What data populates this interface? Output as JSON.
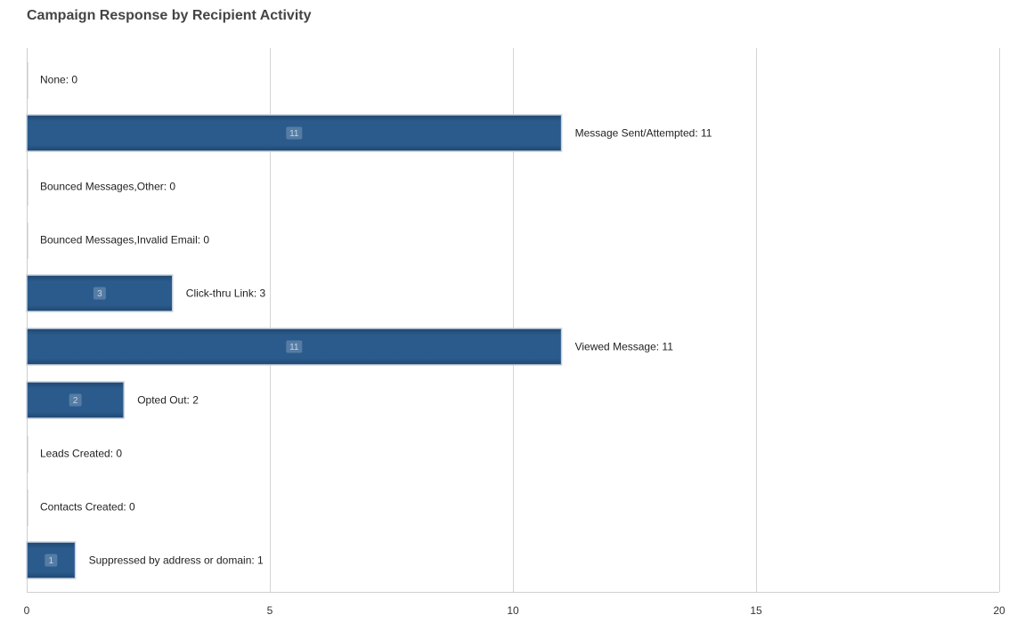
{
  "chart_data": {
    "type": "bar",
    "orientation": "horizontal",
    "title": "Campaign Response by Recipient Activity",
    "categories": [
      "None",
      "Message Sent/Attempted",
      "Bounced Messages,Other",
      "Bounced Messages,Invalid Email",
      "Click-thru Link",
      "Viewed Message",
      "Opted Out",
      "Leads Created",
      "Contacts Created",
      "Suppressed by address or domain"
    ],
    "values": [
      0,
      11,
      0,
      0,
      3,
      11,
      2,
      0,
      0,
      1
    ],
    "xlim": [
      0,
      20
    ],
    "xticks": [
      0,
      5,
      10,
      15,
      20
    ],
    "xlabel": "",
    "ylabel": "",
    "grid": true,
    "legend": "none",
    "colors": {
      "bar": "#2b5b8c",
      "bar_dark": "#1f4670",
      "badge": "#5a7fa6",
      "grid": "#d4d4d4"
    }
  }
}
